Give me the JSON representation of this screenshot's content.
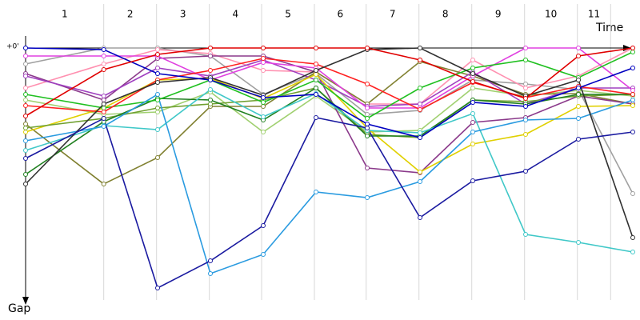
{
  "chart_data": {
    "type": "line",
    "x_label": "Time",
    "y_label": "Gap",
    "categories": [
      "1",
      "2",
      "3",
      "4",
      "5",
      "6",
      "7",
      "8",
      "9",
      "10",
      "11"
    ],
    "xlim": [
      0,
      115
    ],
    "xticks": [
      0,
      14.8,
      24.8,
      34.8,
      44.7,
      54.7,
      64.5,
      74.5,
      84.5,
      94.5,
      104.5,
      110.8
    ],
    "ylim": [
      0,
      315
    ],
    "yticks": [
      {
        "value": 0,
        "label": "+0'"
      }
    ],
    "inverted_y": true,
    "grid": true,
    "x": [
      0,
      14.8,
      25,
      35,
      45,
      55,
      64.7,
      74.7,
      84.7,
      94.7,
      104.7,
      115
    ],
    "series": [
      {
        "color": "#a0a0a0",
        "values": [
          20,
          0,
          0,
          10,
          58,
          32,
          83,
          78,
          40,
          45,
          52,
          182
        ]
      },
      {
        "color": "#ff90b0",
        "values": [
          50,
          20,
          2,
          7,
          28,
          30,
          70,
          70,
          15,
          50,
          35,
          0
        ]
      },
      {
        "color": "#a0d070",
        "values": [
          65,
          83,
          80,
          55,
          105,
          60,
          105,
          103,
          50,
          60,
          53,
          60
        ]
      },
      {
        "color": "#808030",
        "values": [
          95,
          170,
          137,
          73,
          73,
          30,
          70,
          17,
          35,
          58,
          57,
          70
        ]
      },
      {
        "color": "#8b3a8b",
        "values": [
          32,
          65,
          13,
          10,
          10,
          30,
          150,
          156,
          93,
          87,
          60,
          70
        ]
      },
      {
        "color": "#a040c0",
        "values": [
          35,
          60,
          25,
          35,
          15,
          40,
          73,
          70,
          30,
          70,
          50,
          50
        ]
      },
      {
        "color": "#e040e0",
        "values": [
          10,
          10,
          10,
          40,
          18,
          25,
          75,
          75,
          35,
          0,
          0,
          53
        ]
      },
      {
        "color": "#e0d000",
        "values": [
          105,
          75,
          40,
          38,
          63,
          33,
          100,
          155,
          120,
          108,
          73,
          72
        ]
      },
      {
        "color": "#70a030",
        "values": [
          100,
          88,
          75,
          70,
          65,
          50,
          108,
          112,
          65,
          67,
          60,
          58
        ]
      },
      {
        "color": "#208020",
        "values": [
          158,
          92,
          63,
          65,
          90,
          50,
          110,
          110,
          65,
          70,
          58,
          58
        ]
      },
      {
        "color": "#20c020",
        "values": [
          58,
          75,
          65,
          40,
          68,
          40,
          88,
          50,
          25,
          15,
          37,
          5
        ]
      },
      {
        "color": "#40c8c8",
        "values": [
          128,
          97,
          102,
          52,
          86,
          57,
          103,
          106,
          82,
          233,
          243,
          255
        ]
      },
      {
        "color": "#2a9be0",
        "values": [
          116,
          98,
          58,
          282,
          258,
          180,
          187,
          167,
          105,
          90,
          88,
          65
        ]
      },
      {
        "color": "#ff2020",
        "values": [
          72,
          80,
          40,
          28,
          13,
          20,
          45,
          77,
          43,
          62,
          48,
          58
        ]
      },
      {
        "color": "#303030",
        "values": [
          170,
          70,
          43,
          37,
          59,
          28,
          2,
          0,
          32,
          60,
          40,
          237
        ]
      },
      {
        "color": "#1a1aa0",
        "values": [
          138,
          88,
          300,
          266,
          222,
          87,
          100,
          212,
          166,
          154,
          114,
          105
        ]
      },
      {
        "color": "#0000c0",
        "values": [
          0,
          2,
          32,
          40,
          62,
          58,
          95,
          112,
          68,
          73,
          50,
          25
        ]
      },
      {
        "color": "#e00000",
        "values": [
          85,
          27,
          8,
          0,
          0,
          0,
          0,
          15,
          42,
          63,
          10,
          0
        ]
      }
    ]
  }
}
